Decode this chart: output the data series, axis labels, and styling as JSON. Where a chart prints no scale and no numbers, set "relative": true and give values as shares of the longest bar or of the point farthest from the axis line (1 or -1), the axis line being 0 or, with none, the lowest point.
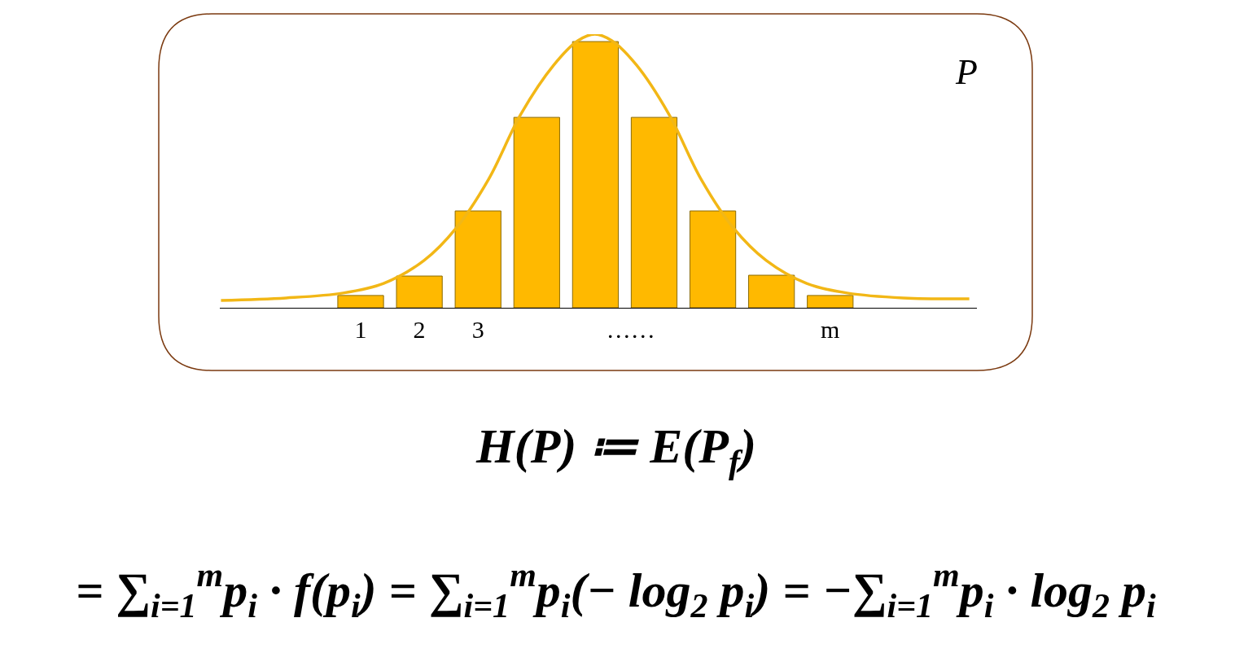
{
  "chart_data": {
    "type": "bar",
    "relative": true,
    "x": [
      1,
      2,
      3,
      4,
      5,
      6,
      7,
      8,
      9
    ],
    "xlim": [
      -1.4,
      11.5
    ],
    "xticks": [
      1,
      2,
      3,
      {
        "value": 5.6,
        "label": "……"
      },
      {
        "value": 9,
        "label": "m"
      }
    ],
    "series": [
      {
        "color": "#ffb900",
        "values": [
          0.045,
          0.116,
          0.354,
          0.696,
          0.973,
          0.696,
          0.354,
          0.119,
          0.045
        ]
      },
      {
        "type": "line",
        "color": "#f2b716",
        "x": [
          -1.38,
          -0.27,
          0.7,
          1.39,
          2.08,
          2.63,
          3.18,
          3.73,
          4.29,
          4.7,
          4.99,
          5.28,
          5.7,
          6.25,
          6.8,
          7.35,
          7.91,
          8.6,
          9.29,
          10.25,
          11.37
        ],
        "values": [
          0.027,
          0.036,
          0.054,
          0.089,
          0.173,
          0.292,
          0.47,
          0.708,
          0.887,
          0.976,
          1,
          0.976,
          0.887,
          0.708,
          0.47,
          0.292,
          0.173,
          0.089,
          0.054,
          0.036,
          0.033
        ]
      }
    ],
    "annotations": [
      "P",
      "H(P) ≔ E(P$_{f}$)",
      "= ∑$_{i=1}$$^{m}$p$_{i}$ · f(p$_{i}$) = ∑$_{i=1}$$^{m}$p$_{i}$(− log$_{2}$ p$_{i}$) = −∑$_{i=1}$$^{m}$p$_{i}$ · log$_{2}$ p$_{i}$"
    ]
  }
}
